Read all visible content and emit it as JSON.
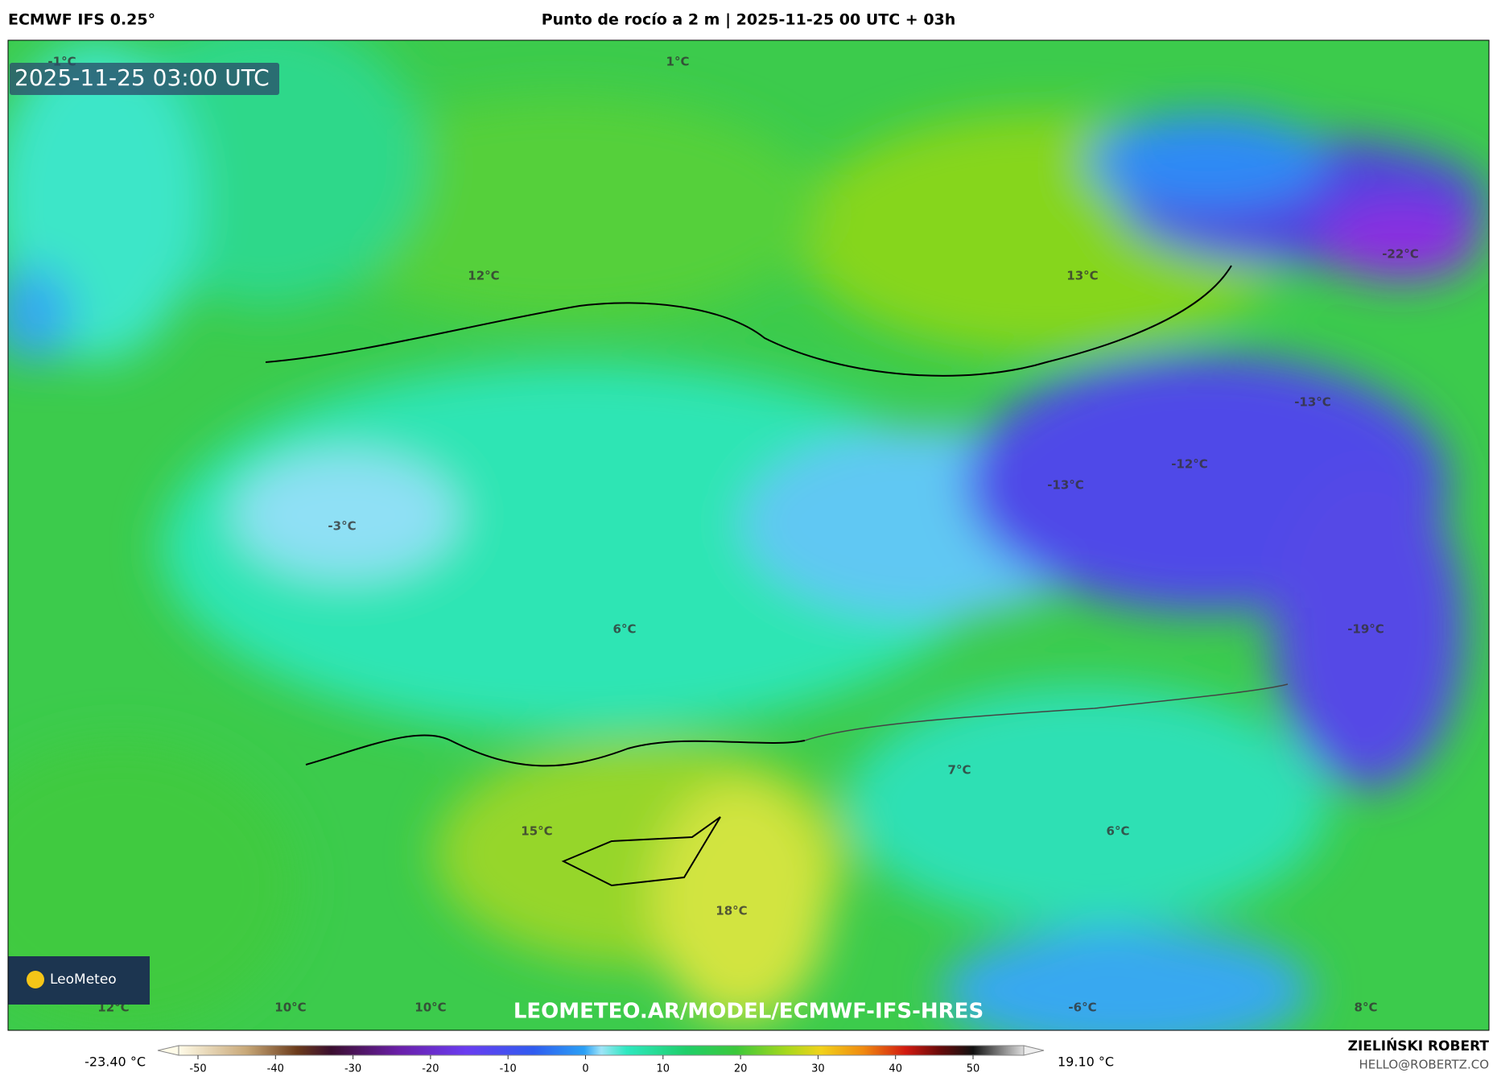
{
  "header": {
    "model": "ECMWF IFS 0.25°",
    "title": "Punto de rocío a 2 m | 2025-11-25 00 UTC + 03h"
  },
  "map": {
    "timestamp": "2025-11-25 03:00 UTC",
    "logo": "LeoMeteo",
    "watermark": "LEOMETEO.AR/MODEL/ECMWF-IFS-HRES",
    "labels": [
      "1°C",
      "-1°C",
      "12°C",
      "13°C",
      "-22°C",
      "-13°C",
      "-12°C",
      "-13°C",
      "-3°C",
      "6°C",
      "-19°C",
      "7°C",
      "15°C",
      "6°C",
      "18°C",
      "12°C",
      "10°C",
      "10°C",
      "-6°C",
      "8°C"
    ]
  },
  "colorbar": {
    "min_label": "-23.40 °C",
    "max_label": "19.10 °C",
    "ticks": [
      -50,
      -40,
      -30,
      -20,
      -10,
      0,
      10,
      20,
      30,
      40,
      50
    ]
  },
  "footer": {
    "author": "ZIELIŃSKI ROBERT",
    "email": "HELLO@ROBERTZ.CO"
  }
}
